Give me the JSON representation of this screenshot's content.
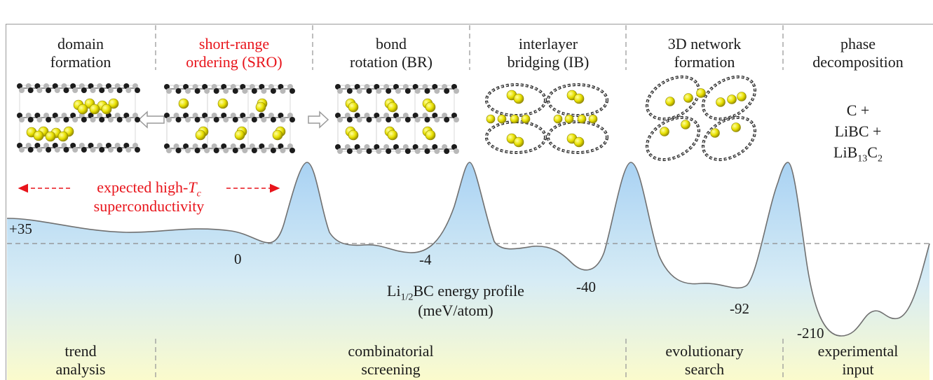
{
  "headers": [
    {
      "line1": "domain",
      "line2": "formation",
      "color": "#1a1a1a"
    },
    {
      "line1": "short-range",
      "line2": "ordering (SRO)",
      "color": "#e8141b"
    },
    {
      "line1": "bond",
      "line2": "rotation (BR)",
      "color": "#1a1a1a"
    },
    {
      "line1": "interlayer",
      "line2": "bridging (IB)",
      "color": "#1a1a1a"
    },
    {
      "line1": "3D network",
      "line2": "formation",
      "color": "#1a1a1a"
    },
    {
      "line1": "phase",
      "line2": "decomposition",
      "color": "#1a1a1a"
    }
  ],
  "decomposition_products": {
    "line1": "C +",
    "line2": "LiBC +",
    "line3_main": "LiB",
    "line3_sub": "13",
    "line3_mid": "C",
    "line3_sub2": "2"
  },
  "tc_note": {
    "line1_prefix": "expected high-",
    "line1_italic": "T",
    "line1_sub": "c",
    "line2": "superconductivity"
  },
  "energy_values": [
    "+35",
    "0",
    "-4",
    "-40",
    "-92",
    "-210"
  ],
  "profile_label": {
    "line1_main": "Li",
    "line1_sub": "1/2",
    "line1_rest": "BC energy profile",
    "line2": "(meV/atom)"
  },
  "methods": [
    {
      "line1": "trend",
      "line2": "analysis"
    },
    {
      "line1": "combinatorial",
      "line2": "screening"
    },
    {
      "line1": "evolutionary",
      "line2": "search"
    },
    {
      "line1": "experimental",
      "line2": "input"
    }
  ],
  "colors": {
    "accent_red": "#e8141b",
    "profile_line": "#707070",
    "fill_top": "#a9d2f3",
    "fill_bottom": "#fbfbcc",
    "lithium_atom": "#e8e000",
    "carbon_atom": "#1c1c1c",
    "boron_atom": "#b8b8b8"
  }
}
